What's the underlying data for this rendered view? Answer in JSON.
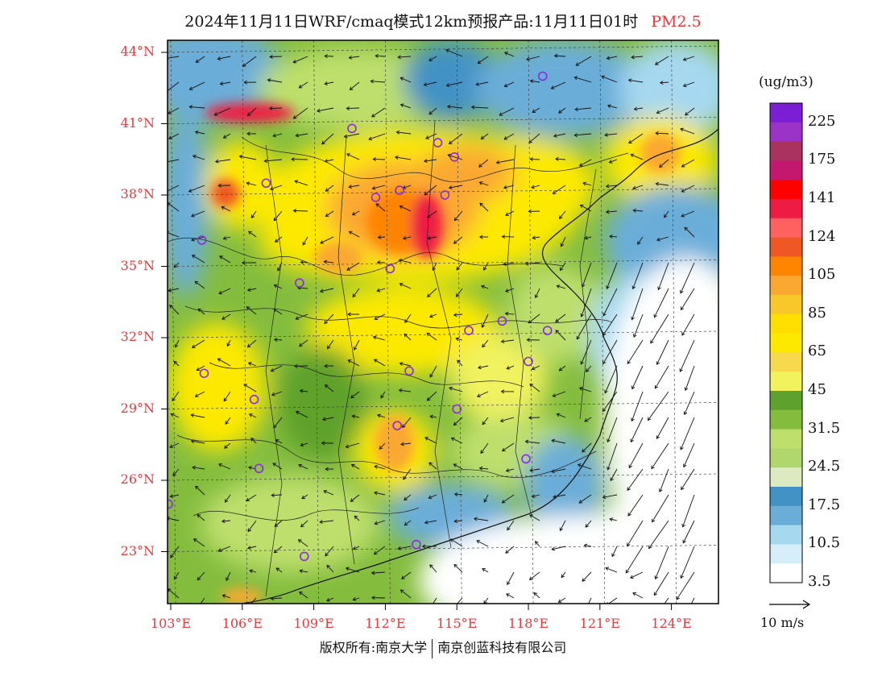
{
  "title": {
    "main": "2024年11月11日WRF/cmaq模式12km预报产品:11月11日01时",
    "pollutant": "PM2.5"
  },
  "colors": {
    "label_red": "#e8383d",
    "frame": "#000000"
  },
  "axes": {
    "lat_labels": [
      "44°N",
      "41°N",
      "38°N",
      "35°N",
      "32°N",
      "29°N",
      "26°N",
      "23°N"
    ],
    "lon_labels": [
      "103°E",
      "106°E",
      "109°E",
      "112°E",
      "115°E",
      "118°E",
      "121°E",
      "124°E"
    ]
  },
  "colorbar": {
    "units": "(ug/m3)",
    "labels": [
      "225",
      "175",
      "141",
      "124",
      "105",
      "85",
      "65",
      "45",
      "31.5",
      "24.5",
      "17.5",
      "10.5",
      "3.5"
    ],
    "colors": [
      "#7b1fd6",
      "#9b33c8",
      "#a93260",
      "#c4176e",
      "#ff0000",
      "#ee1c44",
      "#ff6060",
      "#ef5824",
      "#ff8400",
      "#fba832",
      "#f8c82b",
      "#ffde00",
      "#fde900",
      "#f8d94e",
      "#f1f25e",
      "#5ea12c",
      "#84bd3e",
      "#bedf6c",
      "#b0d66e",
      "#dde9c0",
      "#4292c6",
      "#6aadd9",
      "#a6d8f0",
      "#d6eef9",
      "#ffffff"
    ]
  },
  "wind_scale": {
    "label": "10 m/s"
  },
  "stations": [
    {
      "name": "s1",
      "lon": 107.0,
      "lat": 38.5
    },
    {
      "name": "s2",
      "lon": 104.3,
      "lat": 36.1
    },
    {
      "name": "s3",
      "lon": 108.4,
      "lat": 34.3
    },
    {
      "name": "s4",
      "lon": 111.6,
      "lat": 37.9
    },
    {
      "name": "s5",
      "lon": 112.6,
      "lat": 38.2
    },
    {
      "name": "s6",
      "lon": 114.5,
      "lat": 38.0
    },
    {
      "name": "s7",
      "lon": 110.6,
      "lat": 40.8
    },
    {
      "name": "s8",
      "lon": 114.2,
      "lat": 40.2
    },
    {
      "name": "s9",
      "lon": 114.9,
      "lat": 39.6
    },
    {
      "name": "s10",
      "lon": 112.2,
      "lat": 34.9
    },
    {
      "name": "s11",
      "lon": 115.5,
      "lat": 32.3
    },
    {
      "name": "s12",
      "lon": 116.9,
      "lat": 32.7
    },
    {
      "name": "s13",
      "lon": 118.8,
      "lat": 32.3
    },
    {
      "name": "s14",
      "lon": 118.0,
      "lat": 31.0
    },
    {
      "name": "s15",
      "lon": 104.4,
      "lat": 30.5
    },
    {
      "name": "s16",
      "lon": 106.5,
      "lat": 29.4
    },
    {
      "name": "s17",
      "lon": 113.0,
      "lat": 30.6
    },
    {
      "name": "s18",
      "lon": 115.0,
      "lat": 29.0
    },
    {
      "name": "s19",
      "lon": 112.5,
      "lat": 28.3
    },
    {
      "name": "s20",
      "lon": 106.7,
      "lat": 26.5
    },
    {
      "name": "s21",
      "lon": 117.9,
      "lat": 26.9
    },
    {
      "name": "s22",
      "lon": 102.9,
      "lat": 25.0
    },
    {
      "name": "s23",
      "lon": 108.6,
      "lat": 22.8
    },
    {
      "name": "s24",
      "lon": 113.3,
      "lat": 23.3
    },
    {
      "name": "s25",
      "lon": 118.6,
      "lat": 43.0
    }
  ],
  "copyright": {
    "left": "版权所有:南京大学",
    "right": "南京创蓝科技有限公司"
  }
}
